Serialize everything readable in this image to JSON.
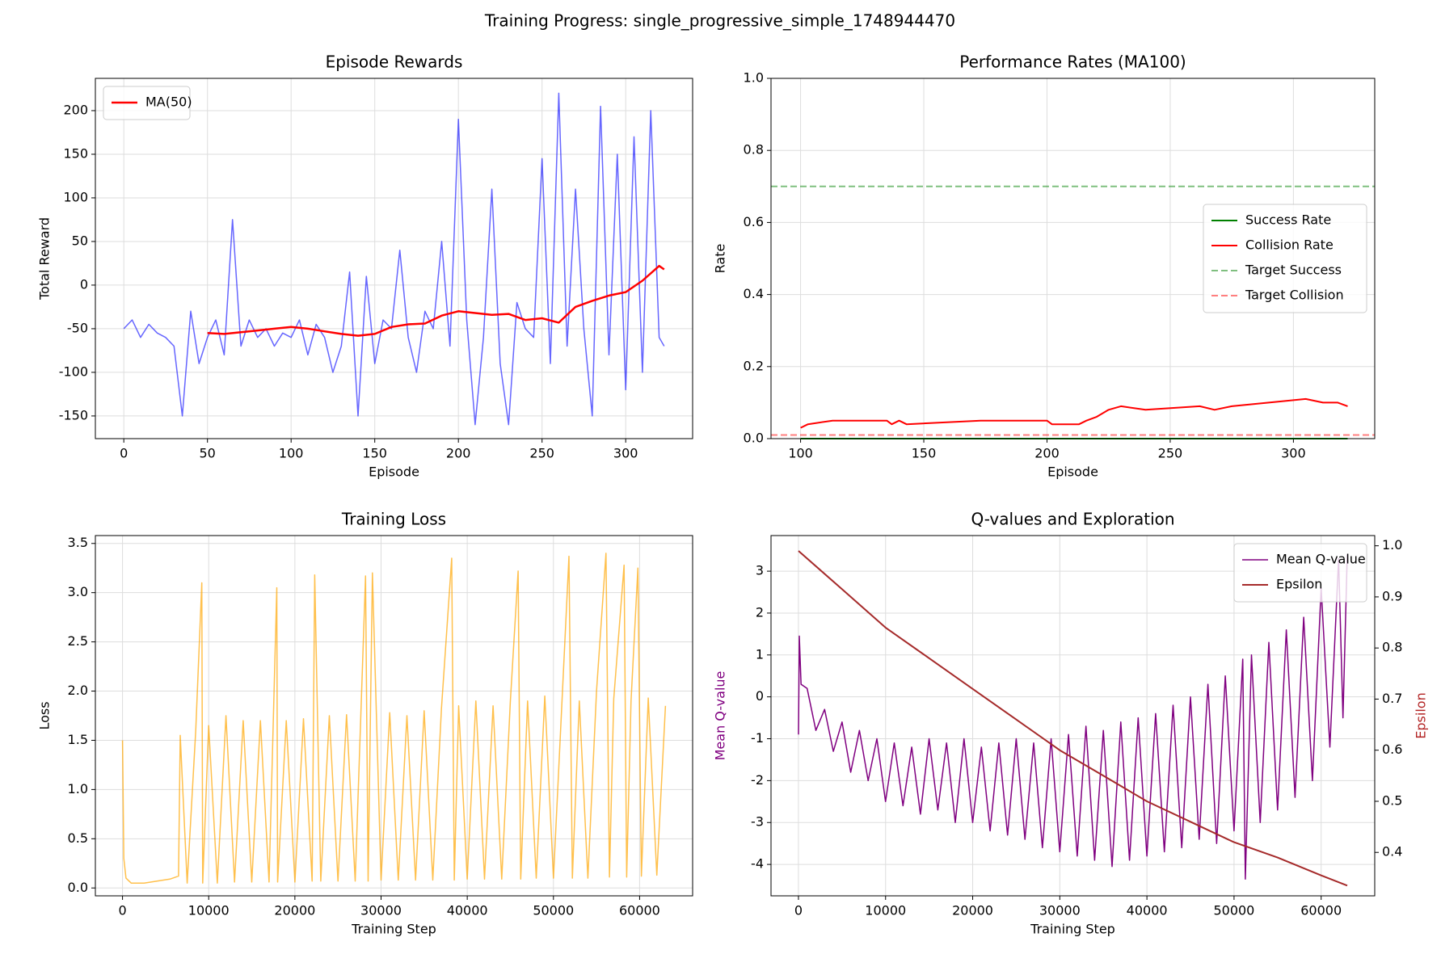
{
  "title": "Training Progress: single_progressive_simple_1748944470",
  "chart_data": [
    {
      "type": "line",
      "title": "Episode Rewards",
      "xlabel": "Episode",
      "ylabel": "Total Reward",
      "xlim": [
        -17,
        340
      ],
      "xticks": [
        0,
        50,
        100,
        150,
        200,
        250,
        300
      ],
      "ylim": [
        -176,
        237
      ],
      "yticks": [
        -150,
        -100,
        -50,
        0,
        50,
        100,
        150,
        200
      ],
      "grid": true,
      "legend": "upper left",
      "series": [
        {
          "color": "blue",
          "alpha": 0.6,
          "width": 1.5,
          "x": [
            0,
            5,
            10,
            15,
            20,
            25,
            30,
            35,
            40,
            45,
            50,
            55,
            60,
            65,
            70,
            75,
            80,
            85,
            90,
            95,
            100,
            105,
            110,
            115,
            120,
            125,
            130,
            135,
            140,
            145,
            150,
            155,
            160,
            165,
            170,
            175,
            180,
            185,
            190,
            195,
            200,
            205,
            210,
            215,
            220,
            225,
            230,
            235,
            240,
            245,
            250,
            255,
            260,
            265,
            270,
            275,
            280,
            285,
            290,
            295,
            300,
            305,
            310,
            315,
            320,
            323
          ],
          "values": [
            -50,
            -40,
            -60,
            -45,
            -55,
            -60,
            -70,
            -150,
            -30,
            -90,
            -60,
            -40,
            -80,
            75,
            -70,
            -40,
            -60,
            -50,
            -70,
            -55,
            -60,
            -40,
            -80,
            -45,
            -60,
            -100,
            -70,
            15,
            -150,
            10,
            -90,
            -40,
            -50,
            40,
            -60,
            -100,
            -30,
            -50,
            50,
            -70,
            190,
            -40,
            -160,
            -60,
            110,
            -90,
            -160,
            -20,
            -50,
            -60,
            145,
            -90,
            220,
            -70,
            110,
            -50,
            -150,
            205,
            -80,
            150,
            -120,
            170,
            -100,
            200,
            -60,
            -70
          ]
        },
        {
          "name": "MA(50)",
          "color": "red",
          "alpha": 1,
          "width": 2.5,
          "x": [
            50,
            60,
            70,
            80,
            90,
            100,
            110,
            120,
            130,
            140,
            150,
            160,
            170,
            180,
            190,
            200,
            210,
            220,
            230,
            240,
            250,
            260,
            270,
            280,
            290,
            300,
            310,
            320,
            323
          ],
          "values": [
            -55,
            -56,
            -54,
            -52,
            -50,
            -48,
            -50,
            -53,
            -56,
            -58,
            -56,
            -48,
            -45,
            -44,
            -35,
            -30,
            -32,
            -34,
            -33,
            -40,
            -38,
            -43,
            -25,
            -18,
            -12,
            -8,
            5,
            22,
            18
          ]
        }
      ]
    },
    {
      "type": "line",
      "title": "Performance Rates (MA100)",
      "xlabel": "Episode",
      "ylabel": "Rate",
      "xlim": [
        88,
        333
      ],
      "xticks": [
        100,
        150,
        200,
        250,
        300
      ],
      "ylim": [
        0,
        1
      ],
      "yticks": [
        {
          "value": 0,
          "label": "0.0"
        },
        0.2,
        0.4,
        0.6,
        0.8,
        {
          "value": 1,
          "label": "1.0"
        }
      ],
      "grid": true,
      "legend": "center right",
      "series": [
        {
          "name": "Success Rate",
          "color": "green",
          "alpha": 1,
          "width": 2,
          "x": [
            100,
            322
          ],
          "values": [
            0,
            0
          ]
        },
        {
          "name": "Collision Rate",
          "color": "red",
          "alpha": 1,
          "width": 2,
          "x": [
            100,
            103,
            113,
            135,
            137,
            140,
            143,
            173,
            200,
            202,
            213,
            216,
            220,
            225,
            230,
            240,
            262,
            268,
            275,
            290,
            305,
            312,
            318,
            322
          ],
          "values": [
            0.03,
            0.04,
            0.05,
            0.05,
            0.04,
            0.05,
            0.04,
            0.05,
            0.05,
            0.04,
            0.04,
            0.05,
            0.06,
            0.08,
            0.09,
            0.08,
            0.09,
            0.08,
            0.09,
            0.1,
            0.11,
            0.1,
            0.1,
            0.09
          ]
        },
        {
          "name": "Target Success",
          "color": "green",
          "alpha": 0.5,
          "width": 2,
          "dashed": true,
          "hline": 0.7
        },
        {
          "name": "Target Collision",
          "color": "red",
          "alpha": 0.5,
          "width": 2,
          "dashed": true,
          "hline": 0.01
        }
      ]
    },
    {
      "type": "line",
      "title": "Training Loss",
      "xlabel": "Training Step",
      "ylabel": "Loss",
      "xlim": [
        -3150,
        66150
      ],
      "xticks": [
        0,
        10000,
        20000,
        30000,
        40000,
        50000,
        60000
      ],
      "ylim": [
        -0.08,
        3.58
      ],
      "yticks": [
        {
          "value": 0,
          "label": "0.0"
        },
        0.5,
        {
          "value": 1,
          "label": "1.0"
        },
        1.5,
        {
          "value": 2,
          "label": "2.0"
        },
        2.5,
        {
          "value": 3,
          "label": "3.0"
        },
        3.5
      ],
      "grid": true,
      "series": [
        {
          "color": "orange",
          "alpha": 0.7,
          "width": 1.5,
          "x": [
            0,
            150,
            400,
            1000,
            2500,
            4000,
            5500,
            6500,
            6700,
            7500,
            8500,
            9200,
            9300,
            10000,
            11000,
            12000,
            13000,
            14000,
            15000,
            16000,
            17000,
            17900,
            18000,
            19000,
            20000,
            21000,
            22000,
            22300,
            23000,
            24000,
            25000,
            26000,
            27000,
            28200,
            28500,
            29000,
            30000,
            31000,
            32000,
            33000,
            34000,
            35000,
            36000,
            37000,
            38200,
            38500,
            39000,
            40000,
            41000,
            42000,
            43000,
            44000,
            45000,
            45900,
            46200,
            47000,
            48000,
            49000,
            50000,
            51000,
            51800,
            52200,
            53000,
            54000,
            55000,
            56100,
            56500,
            57000,
            58200,
            58500,
            59000,
            59800,
            60200,
            61000,
            62000,
            63000
          ],
          "values": [
            1.5,
            0.3,
            0.1,
            0.05,
            0.05,
            0.07,
            0.09,
            0.12,
            1.55,
            0.05,
            1.6,
            3.1,
            0.05,
            1.65,
            0.05,
            1.75,
            0.06,
            1.7,
            0.06,
            1.7,
            0.06,
            3.05,
            0.06,
            1.7,
            0.06,
            1.72,
            0.07,
            3.18,
            0.07,
            1.75,
            0.07,
            1.76,
            0.07,
            3.17,
            0.07,
            3.2,
            0.08,
            1.78,
            0.08,
            1.75,
            0.08,
            1.8,
            0.08,
            1.82,
            3.35,
            0.08,
            1.85,
            0.09,
            1.9,
            0.09,
            1.85,
            0.09,
            1.9,
            3.22,
            0.09,
            1.9,
            0.1,
            1.95,
            0.1,
            1.9,
            3.37,
            0.1,
            1.9,
            0.1,
            2.0,
            3.4,
            0.11,
            1.92,
            3.28,
            0.11,
            1.9,
            3.25,
            0.12,
            1.93,
            0.13,
            1.85
          ]
        }
      ]
    },
    {
      "type": "line",
      "title": "Q-values and Exploration",
      "xlabel": "Training Step",
      "ylabel": "Mean Q-value",
      "ylabel_color": "purple",
      "y2label": "Epsilon",
      "y2label_color": "#b22222",
      "xlim": [
        -3150,
        66150
      ],
      "xticks": [
        0,
        10000,
        20000,
        30000,
        40000,
        50000,
        60000
      ],
      "ylim": [
        -4.75,
        3.85
      ],
      "yticks": [
        -4,
        -3,
        -2,
        -1,
        0,
        1,
        2,
        3
      ],
      "y2lim": [
        0.315,
        1.02
      ],
      "y2ticks": [
        0.4,
        0.5,
        0.6,
        0.7,
        0.8,
        0.9,
        {
          "value": 1,
          "label": "1.0"
        }
      ],
      "grid": true,
      "legend": "upper right",
      "series": [
        {
          "name": "Mean Q-value",
          "color": "purple",
          "alpha": 1,
          "width": 1.5,
          "x": [
            0,
            100,
            300,
            1000,
            2000,
            3000,
            4000,
            5000,
            6000,
            7000,
            8000,
            9000,
            10000,
            11000,
            12000,
            13000,
            14000,
            15000,
            16000,
            17000,
            18000,
            19000,
            20000,
            21000,
            22000,
            23000,
            24000,
            25000,
            26000,
            27000,
            28000,
            29000,
            30000,
            31000,
            32000,
            33000,
            34000,
            35000,
            36000,
            37000,
            38000,
            39000,
            40000,
            41000,
            42000,
            43000,
            44000,
            45000,
            46000,
            47000,
            48000,
            49000,
            50000,
            51000,
            51300,
            52000,
            53000,
            54000,
            55000,
            56000,
            57000,
            58000,
            59000,
            60000,
            61000,
            62000,
            62500,
            63000
          ],
          "values": [
            -0.9,
            1.45,
            0.3,
            0.2,
            -0.8,
            -0.3,
            -1.3,
            -0.6,
            -1.8,
            -0.8,
            -2.0,
            -1.0,
            -2.5,
            -1.1,
            -2.6,
            -1.2,
            -2.8,
            -1.0,
            -2.7,
            -1.1,
            -3.0,
            -1.0,
            -3.0,
            -1.2,
            -3.2,
            -1.1,
            -3.3,
            -1.0,
            -3.4,
            -1.1,
            -3.6,
            -1.0,
            -3.7,
            -0.9,
            -3.8,
            -0.7,
            -3.9,
            -0.8,
            -4.05,
            -0.6,
            -3.9,
            -0.5,
            -3.8,
            -0.4,
            -3.7,
            -0.2,
            -3.6,
            0.0,
            -3.4,
            0.3,
            -3.5,
            0.5,
            -3.2,
            0.9,
            -4.35,
            1.0,
            -3.0,
            1.3,
            -2.7,
            1.6,
            -2.4,
            1.9,
            -2.0,
            2.6,
            -1.2,
            3.3,
            -0.5,
            3.4
          ]
        },
        {
          "name": "Epsilon",
          "color": "brown",
          "alpha": 1,
          "width": 2,
          "axis": "y2",
          "x": [
            0,
            5000,
            10000,
            15000,
            20000,
            25000,
            30000,
            35000,
            40000,
            45000,
            50000,
            55000,
            60000,
            63000
          ],
          "values": [
            0.99,
            0.915,
            0.84,
            0.78,
            0.72,
            0.66,
            0.6,
            0.55,
            0.5,
            0.46,
            0.42,
            0.39,
            0.355,
            0.335
          ]
        }
      ]
    }
  ]
}
